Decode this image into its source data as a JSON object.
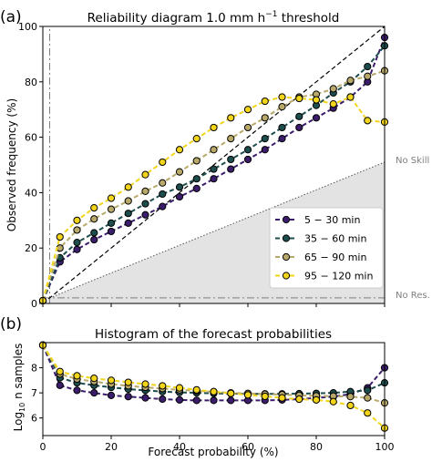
{
  "panel_a": {
    "panel_label": "(a)",
    "title_main": "Reliability diagram 1.0 mm h",
    "title_sup": "−1",
    "title_tail": " threshold",
    "ylabel": "Observed frequency (%)",
    "no_skill_label": "No Skill",
    "no_res_label": "No Res."
  },
  "panel_b": {
    "panel_label": "(b)",
    "title": "Histogram of the forecast probabilities",
    "ylabel_main": "Log",
    "ylabel_sub": "10",
    "ylabel_tail": " n samples",
    "xlabel": "Forecast probability (%)"
  },
  "colors": {
    "5-30": "#3b1d6b",
    "35-60": "#1e4d4d",
    "65-90": "#b8a96a",
    "95-120": "#f2d51a",
    "no_skill_fill": "#e3e3e3",
    "reference": "#000000",
    "climatology": "#7f7f7f"
  },
  "chart_data": [
    {
      "type": "line",
      "title": "Reliability diagram 1.0 mm h−1 threshold",
      "xlabel": "",
      "ylabel": "Observed frequency (%)",
      "xlim": [
        0,
        100
      ],
      "ylim": [
        0,
        100
      ],
      "xticks": [
        0,
        20,
        40,
        60,
        80,
        100
      ],
      "yticks": [
        0,
        20,
        40,
        60,
        80,
        100
      ],
      "legend_position": "lower-right",
      "climatology": 2,
      "no_skill_at_100": 51,
      "x": [
        0,
        5,
        10,
        15,
        20,
        25,
        30,
        35,
        40,
        45,
        50,
        55,
        60,
        65,
        70,
        75,
        80,
        85,
        90,
        95,
        100
      ],
      "series": [
        {
          "name": "5 − 30 min",
          "color_key": "5-30",
          "values": [
            1,
            15,
            19.5,
            23,
            26,
            29,
            32,
            35,
            38.5,
            41.5,
            45,
            48.5,
            52,
            55.5,
            59.5,
            63.5,
            67,
            70.5,
            74.5,
            80,
            96
          ]
        },
        {
          "name": "35 − 60 min",
          "color_key": "35-60",
          "values": [
            1,
            16.5,
            22,
            25.5,
            29,
            32.5,
            36,
            39.5,
            42,
            45,
            48.5,
            52,
            55.5,
            59.5,
            63.5,
            67.5,
            71.5,
            76,
            80,
            85.5,
            93
          ]
        },
        {
          "name": "65 − 90 min",
          "color_key": "65-90",
          "values": [
            1,
            20,
            26.5,
            30.5,
            34,
            37,
            40.5,
            43.5,
            47.5,
            51.5,
            55.5,
            59.5,
            63.5,
            67,
            71,
            74.5,
            75.5,
            77.5,
            80.5,
            82,
            84
          ]
        },
        {
          "name": "95 − 120 min",
          "color_key": "95-120",
          "values": [
            1,
            24,
            30,
            34.5,
            38,
            42,
            46.5,
            51,
            55.5,
            59.5,
            63.5,
            67,
            70,
            73,
            74.5,
            74,
            73.5,
            72,
            74.5,
            66,
            65.5
          ]
        }
      ]
    },
    {
      "type": "line",
      "title": "Histogram of the forecast probabilities",
      "xlabel": "Forecast probability (%)",
      "ylabel": "Log10 n samples",
      "xlim": [
        0,
        100
      ],
      "ylim": [
        5.3,
        9.0
      ],
      "xticks": [
        0,
        20,
        40,
        60,
        80,
        100
      ],
      "yticks": [
        6,
        7,
        8
      ],
      "x": [
        0,
        5,
        10,
        15,
        20,
        25,
        30,
        35,
        40,
        45,
        50,
        55,
        60,
        65,
        70,
        75,
        80,
        85,
        90,
        95,
        100
      ],
      "series": [
        {
          "name": "5 − 30 min",
          "color_key": "5-30",
          "values": [
            8.9,
            7.3,
            7.1,
            7.0,
            6.9,
            6.85,
            6.8,
            6.75,
            6.72,
            6.7,
            6.7,
            6.7,
            6.7,
            6.7,
            6.72,
            6.75,
            6.8,
            6.85,
            6.95,
            7.2,
            8.0
          ]
        },
        {
          "name": "35 − 60 min",
          "color_key": "35-60",
          "values": [
            8.9,
            7.6,
            7.4,
            7.3,
            7.22,
            7.15,
            7.1,
            7.05,
            7.02,
            7.0,
            6.98,
            6.97,
            6.96,
            6.96,
            6.96,
            6.97,
            6.98,
            7.0,
            7.05,
            7.1,
            7.4
          ]
        },
        {
          "name": "65 − 90 min",
          "color_key": "65-90",
          "values": [
            8.9,
            7.75,
            7.55,
            7.45,
            7.35,
            7.28,
            7.22,
            7.17,
            7.12,
            7.08,
            7.04,
            7.0,
            6.98,
            6.95,
            6.93,
            6.9,
            6.88,
            6.87,
            6.85,
            6.8,
            6.6
          ]
        },
        {
          "name": "95 − 120 min",
          "color_key": "95-120",
          "values": [
            8.9,
            7.85,
            7.68,
            7.58,
            7.5,
            7.42,
            7.35,
            7.28,
            7.2,
            7.12,
            7.05,
            6.98,
            6.92,
            6.86,
            6.8,
            6.75,
            6.72,
            6.65,
            6.5,
            6.2,
            5.6
          ]
        }
      ]
    }
  ]
}
